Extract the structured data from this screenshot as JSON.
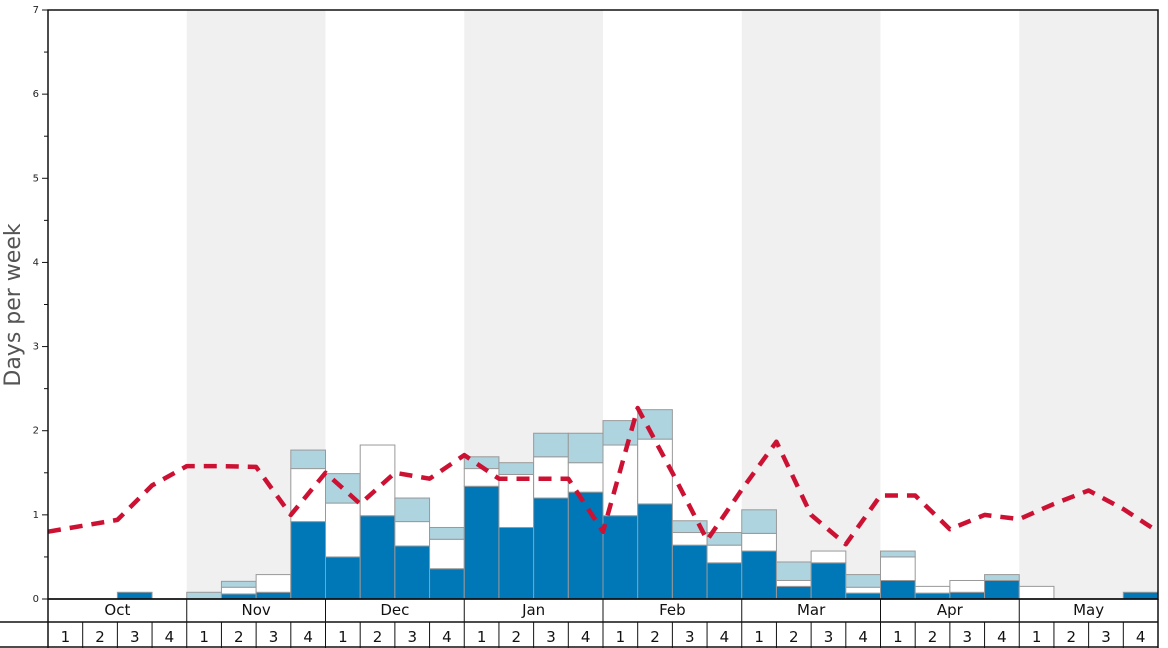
{
  "chart_data": {
    "type": "bar",
    "title": "",
    "ylabel": "Days per week",
    "xlabel": "",
    "ylim": [
      0,
      7
    ],
    "yticks": [
      "0",
      "1",
      "2",
      "3",
      "4",
      "5",
      "6",
      "7"
    ],
    "months": [
      "Oct",
      "Nov",
      "Dec",
      "Jan",
      "Feb",
      "Mar",
      "Apr",
      "May"
    ],
    "week_labels": [
      "1",
      "2",
      "3",
      "4"
    ],
    "stacking": "stacked",
    "colors": {
      "series_dark": "#0077b6",
      "series_white": "#ffffff",
      "series_light": "#aed4e0",
      "line": "#cc1133",
      "band_shade": "#f0f0f0",
      "bar_edge": "#999999"
    },
    "series": [
      {
        "values": [
          0,
          0,
          0.08,
          0,
          0,
          0.06,
          0.08,
          0.92,
          0.5,
          0.99,
          0.63,
          0.36,
          1.34,
          0.85,
          1.2,
          1.27,
          0.99,
          1.13,
          0.64,
          0.43,
          0.57,
          0.15,
          0.43,
          0.07,
          0.22,
          0.07,
          0.08,
          0.22,
          0,
          0,
          0,
          0.08
        ]
      },
      {
        "values": [
          0,
          0,
          0,
          0,
          0,
          0.08,
          0.21,
          0.63,
          0.64,
          0.84,
          0.29,
          0.35,
          0.21,
          0.63,
          0.49,
          0.35,
          0.84,
          0.77,
          0.15,
          0.21,
          0.21,
          0.07,
          0.14,
          0.07,
          0.28,
          0.08,
          0.14,
          0,
          0.15,
          0,
          0,
          0
        ],
        "color": "white"
      },
      {
        "values": [
          0,
          0,
          0,
          0,
          0.08,
          0.07,
          0,
          0.22,
          0.35,
          0,
          0.28,
          0.14,
          0.14,
          0.14,
          0.28,
          0.35,
          0.29,
          0.35,
          0.14,
          0.15,
          0.28,
          0.22,
          0,
          0.15,
          0.07,
          0,
          0,
          0.07,
          0,
          0,
          0,
          0
        ],
        "color": "lightblue"
      }
    ],
    "line": {
      "style": "dashed",
      "values": [
        0.8,
        0.87,
        0.94,
        1.35,
        1.58,
        1.58,
        1.57,
        1.0,
        1.5,
        1.13,
        1.5,
        1.43,
        1.71,
        1.43,
        1.43,
        1.43,
        0.8,
        2.27,
        1.5,
        0.7,
        1.3,
        1.87,
        1.0,
        0.65,
        1.23,
        1.23,
        0.83,
        1.0,
        0.95,
        1.13,
        1.29,
        1.07,
        0.8
      ]
    }
  }
}
